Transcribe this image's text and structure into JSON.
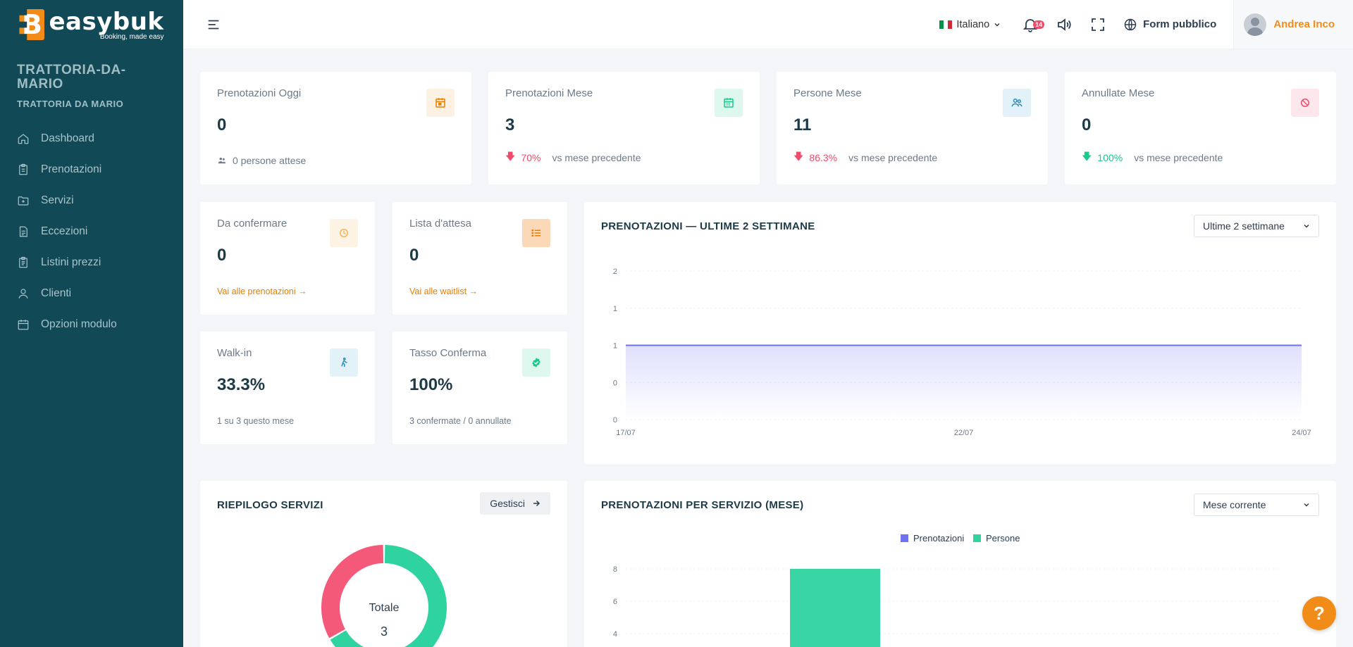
{
  "brand": {
    "name": "easybuk",
    "tagline": "Booking, made easy"
  },
  "restaurant": {
    "name": "TRATTORIA-DA-MARIO",
    "subtitle": "TRATTORIA DA MARIO"
  },
  "nav": [
    {
      "label": "Dashboard",
      "icon": "home-icon"
    },
    {
      "label": "Prenotazioni",
      "icon": "clipboard-icon"
    },
    {
      "label": "Servizi",
      "icon": "folder-icon"
    },
    {
      "label": "Eccezioni",
      "icon": "document-icon"
    },
    {
      "label": "Listini prezzi",
      "icon": "clipboard-list-icon"
    },
    {
      "label": "Clienti",
      "icon": "user-icon"
    },
    {
      "label": "Opzioni modulo",
      "icon": "calendar-icon"
    }
  ],
  "topbar": {
    "language": "Italiano",
    "notifications_count": "14",
    "public_form": "Form pubblico",
    "user_name": "Andrea Inco"
  },
  "stats": {
    "today": {
      "label": "Prenotazioni Oggi",
      "value": "0",
      "foot": "0 persone attese"
    },
    "month": {
      "label": "Prenotazioni Mese",
      "value": "3",
      "trend": "70%",
      "foot": "vs mese precedente"
    },
    "people": {
      "label": "Persone Mese",
      "value": "11",
      "trend": "86.3%",
      "foot": "vs mese precedente"
    },
    "cancelled": {
      "label": "Annullate Mese",
      "value": "0",
      "trend": "100%",
      "foot": "vs mese precedente"
    },
    "to_confirm": {
      "label": "Da confermare",
      "value": "0",
      "link": "Vai alle prenotazioni →"
    },
    "waitlist": {
      "label": "Lista d'attesa",
      "value": "0",
      "link": "Vai alle waitlist →"
    },
    "walkin": {
      "label": "Walk-in",
      "value": "33.3%",
      "foot": "1 su 3 questo mese"
    },
    "confirm_rate": {
      "label": "Tasso Conferma",
      "value": "100%",
      "foot": "3 confermate / 0 annullate"
    }
  },
  "colors": {
    "sidebar": "#124956",
    "accent": "#f28c18",
    "line": "#6c72f0",
    "green": "#2ed3a0",
    "red": "#f5597a"
  },
  "chart_data": [
    {
      "type": "area",
      "title": "PRENOTAZIONI — ULTIME 2 SETTIMANE",
      "filter": "Ultime 2 settimane",
      "x": [
        "17/07",
        "22/07",
        "24/07"
      ],
      "y_ticks": [
        "2",
        "1",
        "1",
        "0",
        "0"
      ],
      "series": [
        {
          "values": [
            1,
            1,
            1
          ]
        }
      ],
      "ylim": [
        0,
        2
      ]
    },
    {
      "type": "pie",
      "title": "RIEPILOGO SERVIZI",
      "button": "Gestisci",
      "center_label": "Totale",
      "center_value": "3",
      "values": [
        2,
        1
      ]
    },
    {
      "type": "bar",
      "title": "PRENOTAZIONI PER SERVIZIO (MESE)",
      "filter": "Mese corrente",
      "series": [
        {
          "name": "Prenotazioni",
          "values": [
            0
          ]
        },
        {
          "name": "Persone",
          "values": [
            8
          ]
        }
      ],
      "y_ticks": [
        "8",
        "6",
        "4"
      ],
      "ylim": [
        0,
        8
      ]
    }
  ],
  "help": "?"
}
